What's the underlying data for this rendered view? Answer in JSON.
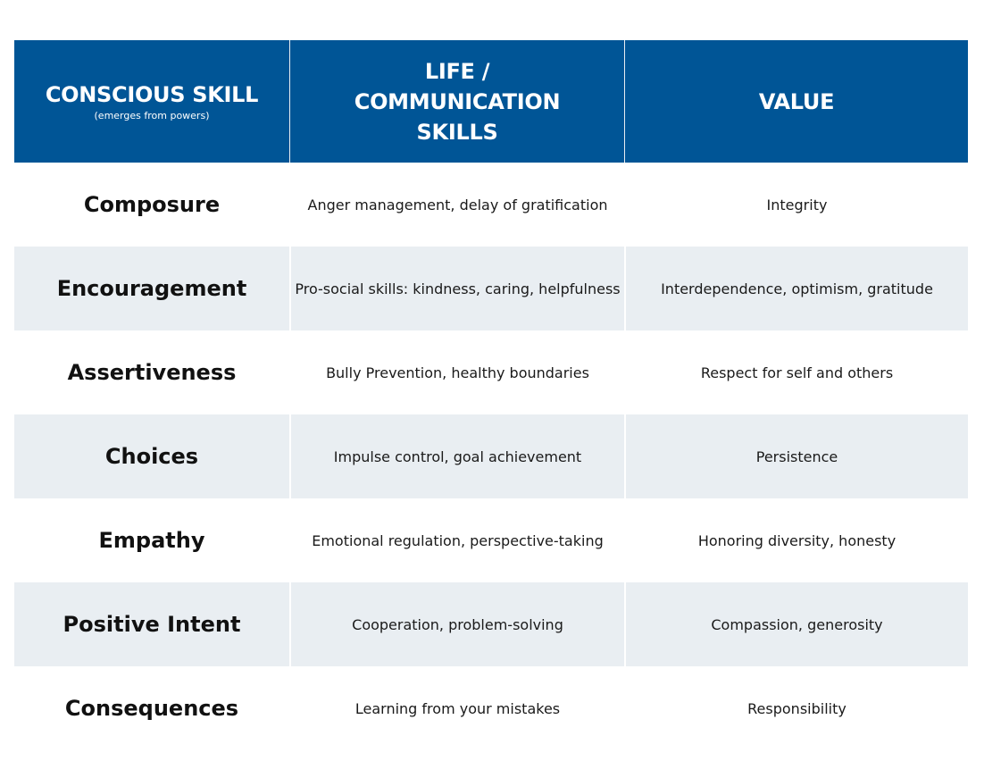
{
  "header": {
    "col1_title": "CONSCIOUS SKILL",
    "col1_subtitle": "(emerges from powers)",
    "col2_title": "LIFE / COMMUNICATION SKILLS",
    "col3_title": "VALUE"
  },
  "rows": [
    {
      "skill": "Composure",
      "life": "Anger management, delay of gratification",
      "value": "Integrity"
    },
    {
      "skill": "Encouragement",
      "life": "Pro-social skills: kindness, caring, helpfulness",
      "value": "Interdependence, optimism, gratitude"
    },
    {
      "skill": "Assertiveness",
      "life": "Bully Prevention, healthy boundaries",
      "value": "Respect for self and others"
    },
    {
      "skill": "Choices",
      "life": "Impulse control, goal achievement",
      "value": "Persistence"
    },
    {
      "skill": "Empathy",
      "life": "Emotional regulation, perspective-taking",
      "value": "Honoring diversity, honesty"
    },
    {
      "skill": "Positive Intent",
      "life": "Cooperation, problem-solving",
      "value": "Compassion, generosity"
    },
    {
      "skill": "Consequences",
      "life": "Learning from your mistakes",
      "value": "Responsibility"
    }
  ],
  "colors": {
    "header_bg": "#005596",
    "shaded_row_bg": "#e9eef2"
  }
}
